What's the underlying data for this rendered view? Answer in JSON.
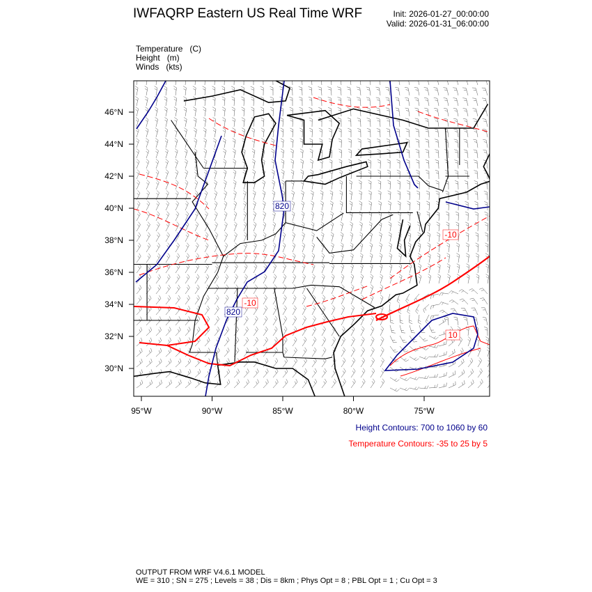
{
  "title": "IWFAQRP Eastern US Real Time WRF",
  "init": "Init: 2026-01-27_00:00:00",
  "valid": "Valid: 2026-01-31_06:00:00",
  "fields": [
    "Temperature   (C)",
    "Height   (m)",
    "Winds   (kts)"
  ],
  "lat_ticks": [
    "46°N",
    "44°N",
    "42°N",
    "40°N",
    "38°N",
    "36°N",
    "34°N",
    "32°N",
    "30°N"
  ],
  "lon_ticks": [
    "95°W",
    "90°W",
    "85°W",
    "80°W",
    "75°W"
  ],
  "contour_labels": {
    "height_north": "820",
    "height_south": "820",
    "temp_ne": "-10",
    "temp_central": "-10",
    "temp_offshore": "10"
  },
  "height_legend": "Height Contours: 700 to 1060 by 60",
  "temp_legend": "Temperature Contours: -35 to 25 by 5",
  "footer": [
    "OUTPUT FROM WRF V4.6.1 MODEL",
    "WE = 310 ; SN = 275 ; Levels = 38 ; Dis = 8km ; Phys Opt = 8 ; PBL Opt = 1 ; Cu Opt = 3"
  ],
  "colors": {
    "height": "#00008b",
    "temperature": "#ff0000",
    "map": "#000000"
  }
}
